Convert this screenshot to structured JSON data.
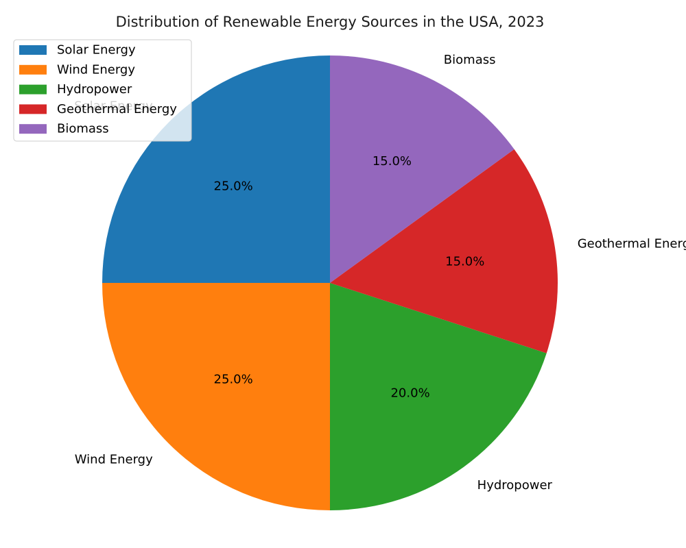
{
  "chart_data": {
    "type": "pie",
    "title": "Distribution of Renewable Energy Sources in the USA, 2023",
    "categories": [
      "Solar Energy",
      "Wind Energy",
      "Hydropower",
      "Geothermal Energy",
      "Biomass"
    ],
    "values": [
      25.0,
      25.0,
      20.0,
      15.0,
      15.0
    ],
    "percent_labels": [
      "25.0%",
      "25.0%",
      "20.0%",
      "15.0%",
      "15.0%"
    ],
    "colors": [
      "#1f77b4",
      "#ff7f0e",
      "#2ca02c",
      "#d62728",
      "#9467bd"
    ],
    "start_angle_deg": 90,
    "direction": "counterclockwise",
    "legend": {
      "placement": "top-left",
      "entries": [
        "Solar Energy",
        "Wind Energy",
        "Hydropower",
        "Geothermal Energy",
        "Biomass"
      ]
    }
  }
}
